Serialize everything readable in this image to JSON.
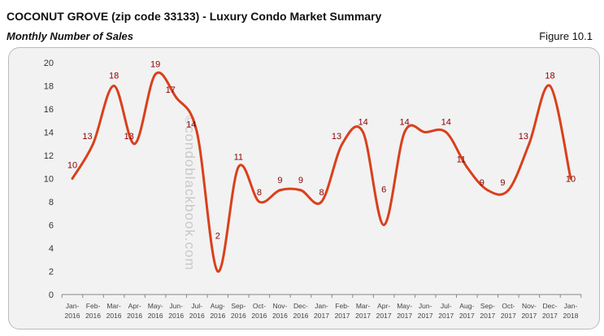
{
  "header": {
    "title": "COCONUT GROVE (zip code 33133) - Luxury Condo Market Summary",
    "subtitle": "Monthly Number of Sales",
    "figure": "Figure 10.1"
  },
  "watermark": "©condoblackbook.com",
  "chart_data": {
    "type": "line",
    "title": "",
    "xlabel": "",
    "ylabel": "",
    "categories": [
      "Jan-2016",
      "Feb-2016",
      "Mar-2016",
      "Apr-2016",
      "May-2016",
      "Jun-2016",
      "Jul-2016",
      "Aug-2016",
      "Sep-2016",
      "Oct-2016",
      "Nov-2016",
      "Dec-2016",
      "Jan-2017",
      "Feb-2017",
      "Mar-2017",
      "Apr-2017",
      "May-2017",
      "Jun-2017",
      "Jul-2017",
      "Aug-2017",
      "Sep-2017",
      "Oct-2017",
      "Nov-2017",
      "Dec-2017",
      "Jan-2018"
    ],
    "values": [
      10,
      13,
      18,
      13,
      19,
      17,
      14,
      2,
      11,
      8,
      9,
      9,
      8,
      13,
      14,
      6,
      14,
      14,
      14,
      11,
      9,
      9,
      13,
      18,
      10
    ],
    "data_labels": [
      "10",
      "13",
      "18",
      "13",
      "19",
      "17",
      "14",
      "2",
      "11",
      "8",
      "9",
      "9",
      "8",
      "13",
      "14",
      "6",
      "14",
      null,
      "14",
      "11",
      "9",
      "9",
      "13",
      "18",
      "10"
    ],
    "ylim": [
      0,
      20
    ],
    "yticks": [
      "0",
      "2",
      "4",
      "6",
      "8",
      "10",
      "12",
      "14",
      "16",
      "18",
      "20"
    ],
    "grid": false,
    "smooth": true,
    "colors": {
      "line": "#d9401c",
      "label": "#8b0000"
    }
  }
}
